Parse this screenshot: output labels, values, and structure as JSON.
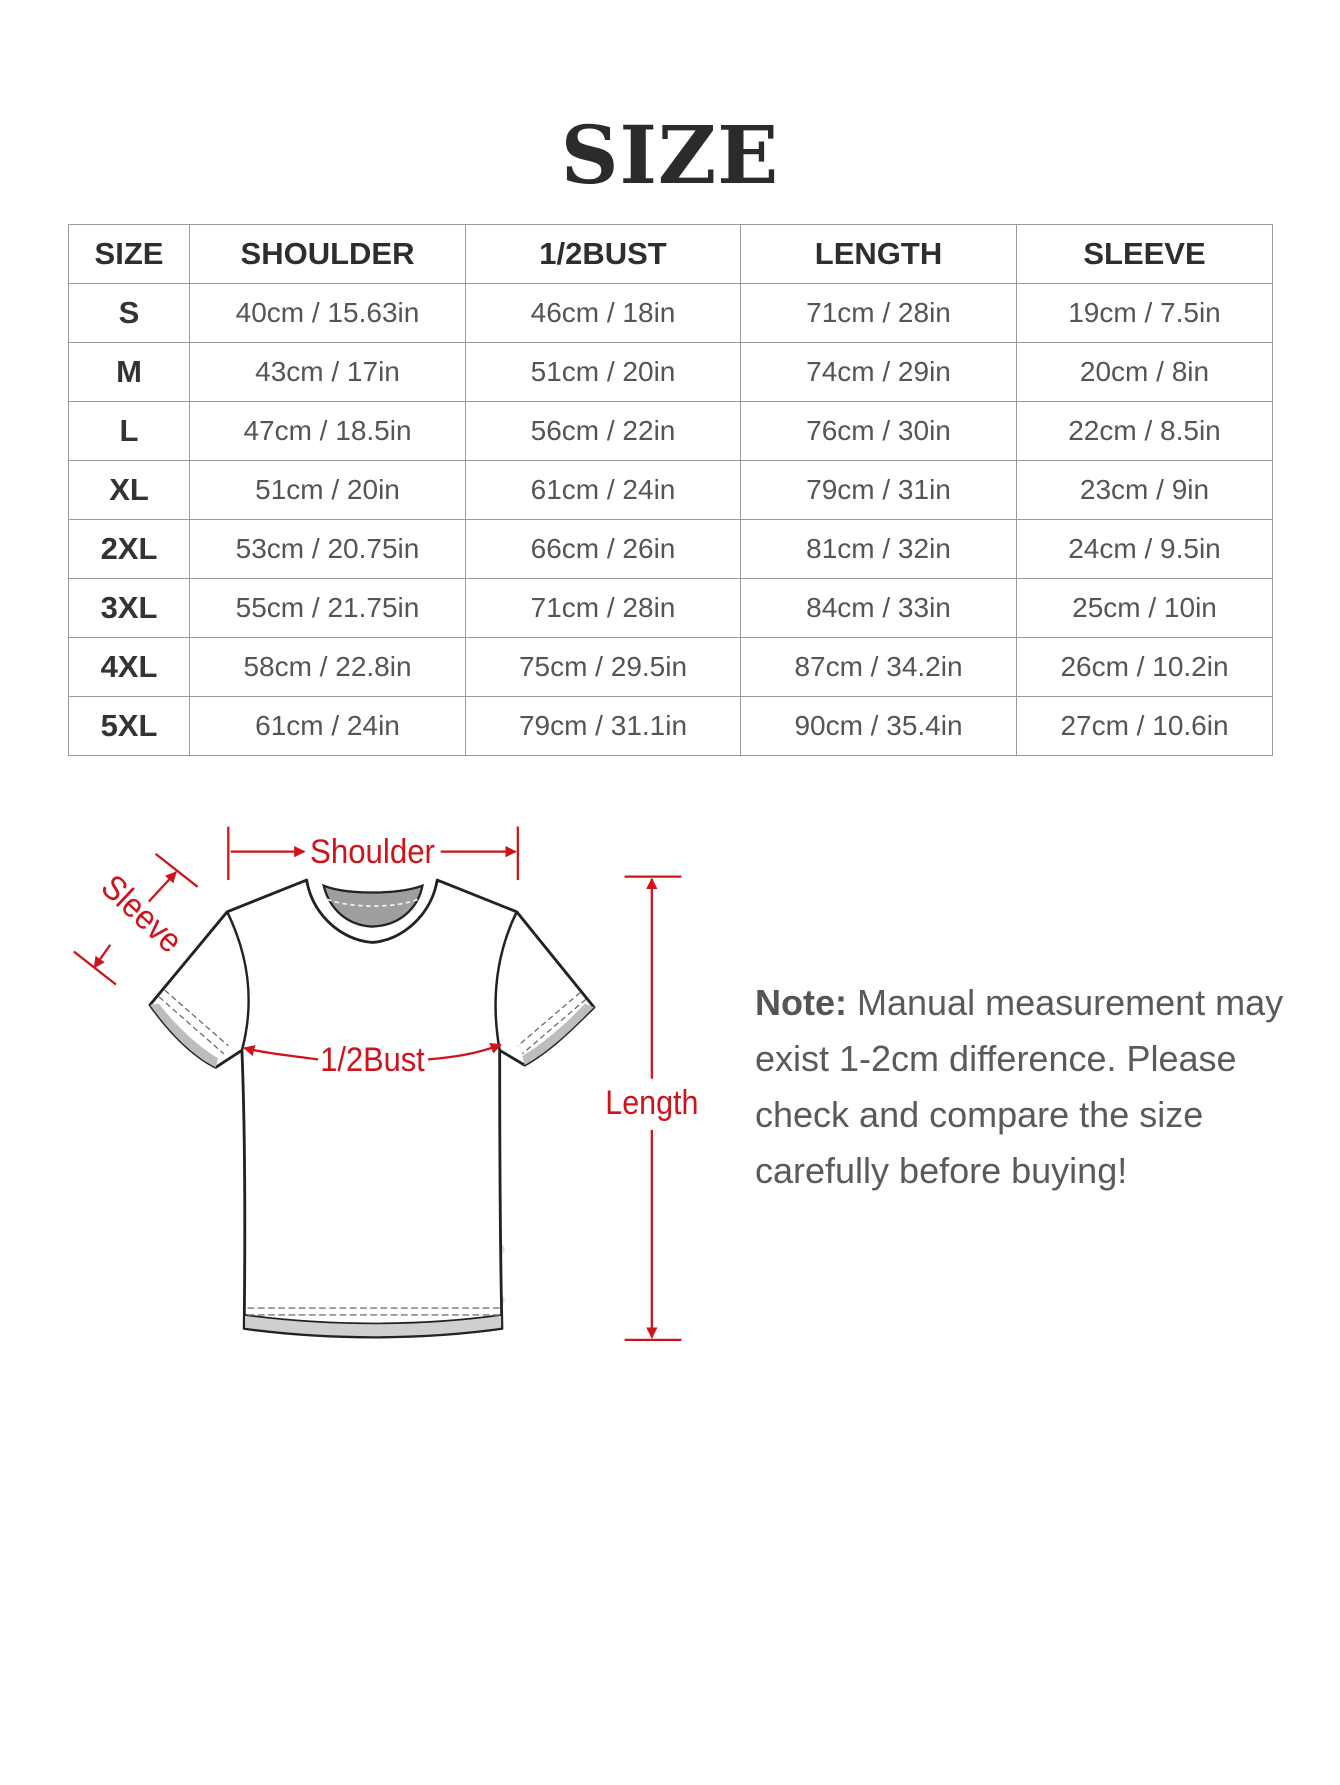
{
  "title": "SIZE",
  "table": {
    "headers": [
      "SIZE",
      "SHOULDER",
      "1/2BUST",
      "LENGTH",
      "SLEEVE"
    ],
    "rows": [
      [
        "S",
        "40cm / 15.63in",
        "46cm / 18in",
        "71cm / 28in",
        "19cm / 7.5in"
      ],
      [
        "M",
        "43cm / 17in",
        "51cm / 20in",
        "74cm / 29in",
        "20cm / 8in"
      ],
      [
        "L",
        "47cm / 18.5in",
        "56cm / 22in",
        "76cm / 30in",
        "22cm / 8.5in"
      ],
      [
        "XL",
        "51cm / 20in",
        "61cm / 24in",
        "79cm / 31in",
        "23cm / 9in"
      ],
      [
        "2XL",
        "53cm / 20.75in",
        "66cm / 26in",
        "81cm / 32in",
        "24cm / 9.5in"
      ],
      [
        "3XL",
        "55cm / 21.75in",
        "71cm / 28in",
        "84cm / 33in",
        "25cm / 10in"
      ],
      [
        "4XL",
        "58cm / 22.8in",
        "75cm / 29.5in",
        "87cm / 34.2in",
        "26cm / 10.2in"
      ],
      [
        "5XL",
        "61cm / 24in",
        "79cm / 31.1in",
        "90cm / 35.4in",
        "27cm / 10.6in"
      ]
    ]
  },
  "diagram": {
    "shoulder_label": "Shoulder",
    "sleeve_label": "Sleeve",
    "bust_label": "1/2Bust",
    "length_label": "Length",
    "accent_color": "#d0121b"
  },
  "note": {
    "label": "Note:",
    "text": " Manual measurement may exist 1-2cm difference. Please check and compare the size carefully before buying!"
  }
}
